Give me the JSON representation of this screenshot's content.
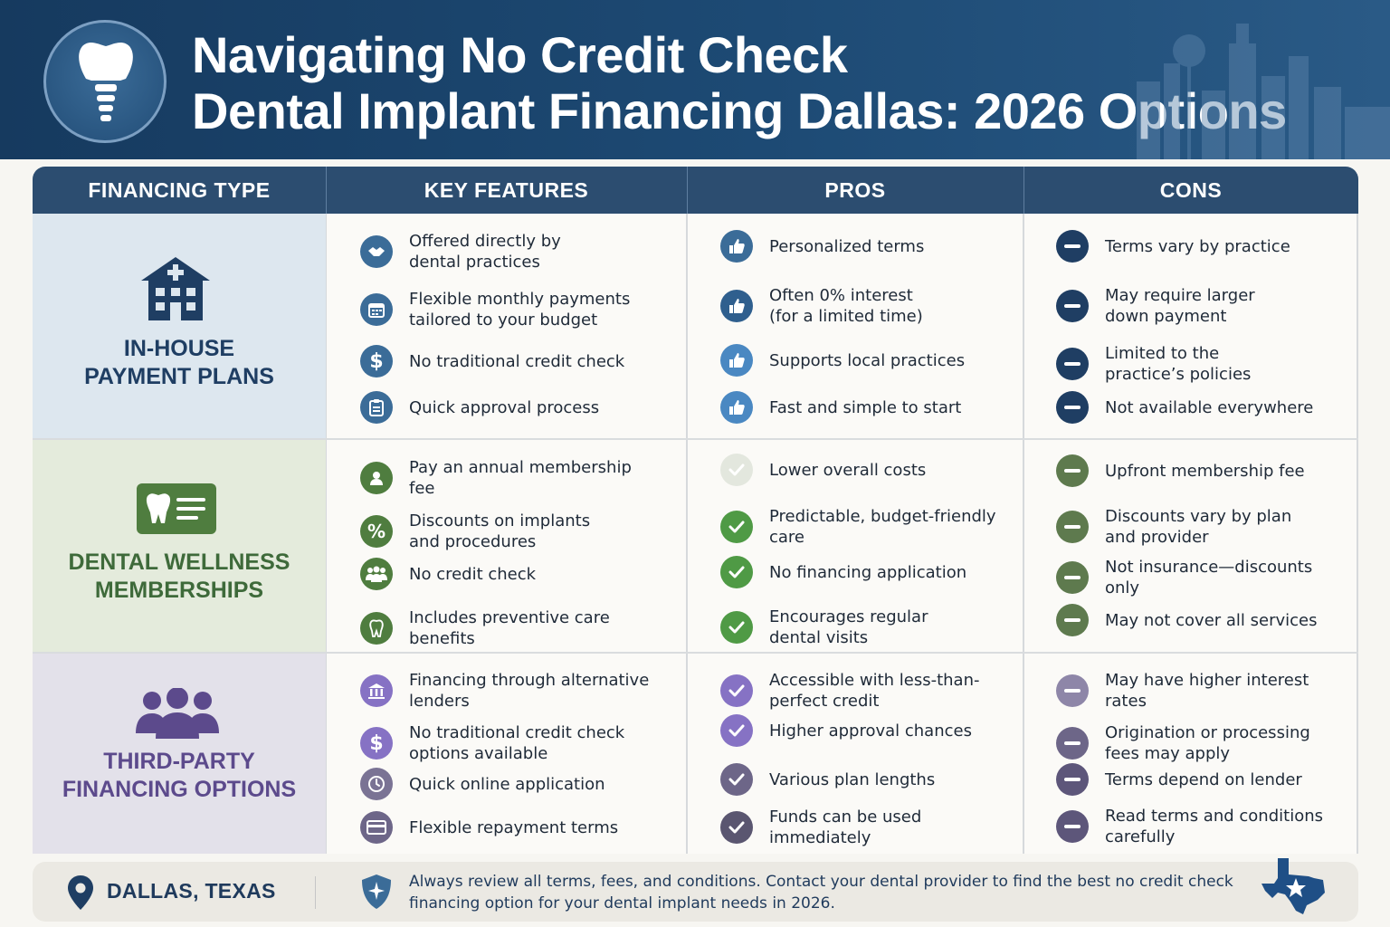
{
  "header": {
    "title_line1": "Navigating No Credit Check",
    "title_line2": "Dental Implant Financing Dallas: 2026 Options",
    "logo_icon": "dental-implant-icon"
  },
  "table": {
    "columns": [
      "FINANCING TYPE",
      "KEY FEATURES",
      "PROS",
      "CONS"
    ],
    "rows": [
      {
        "type_line1": "IN-HOUSE",
        "type_line2": "PAYMENT PLANS",
        "type_icon": "hospital-building-icon",
        "color": "#1f3e63",
        "features": [
          {
            "icon": "handshake-icon",
            "text": "Offered directly by\ndental practices"
          },
          {
            "icon": "calendar-icon",
            "text": "Flexible monthly payments\ntailored to your budget"
          },
          {
            "icon": "dollar-icon",
            "text": "No traditional credit check"
          },
          {
            "icon": "clipboard-icon",
            "text": "Quick approval process"
          }
        ],
        "pros": [
          {
            "icon": "thumbs-up-icon",
            "text": "Personalized terms"
          },
          {
            "icon": "thumbs-up-icon",
            "text": "Often 0% interest\n(for a limited time)"
          },
          {
            "icon": "thumbs-up-icon",
            "text": "Supports local practices"
          },
          {
            "icon": "thumbs-up-icon",
            "text": "Fast and simple to start"
          }
        ],
        "cons": [
          {
            "icon": "minus-icon",
            "text": "Terms vary by practice"
          },
          {
            "icon": "minus-icon",
            "text": "May require larger\ndown payment"
          },
          {
            "icon": "minus-icon",
            "text": "Limited to the\npractice’s policies"
          },
          {
            "icon": "minus-icon",
            "text": "Not available everywhere"
          }
        ]
      },
      {
        "type_line1": "DENTAL WELLNESS",
        "type_line2": "MEMBERSHIPS",
        "type_icon": "membership-card-icon",
        "color": "#3e6a3a",
        "features": [
          {
            "icon": "user-icon",
            "text": "Pay an annual membership\nfee"
          },
          {
            "icon": "percent-icon",
            "text": "Discounts on implants\nand procedures"
          },
          {
            "icon": "group-icon",
            "text": "No credit check"
          },
          {
            "icon": "tooth-icon",
            "text": "Includes preventive care\nbenefits"
          }
        ],
        "pros": [
          {
            "icon": "check-icon",
            "text": "Lower overall costs"
          },
          {
            "icon": "check-icon",
            "text": "Predictable, budget-friendly\ncare"
          },
          {
            "icon": "check-icon",
            "text": "No financing application"
          },
          {
            "icon": "check-icon",
            "text": "Encourages regular\ndental visits"
          }
        ],
        "cons": [
          {
            "icon": "minus-icon",
            "text": "Upfront membership fee"
          },
          {
            "icon": "minus-icon",
            "text": "Discounts vary by plan\nand provider"
          },
          {
            "icon": "minus-icon",
            "text": "Not insurance—discounts\nonly"
          },
          {
            "icon": "minus-icon",
            "text": "May not cover all services"
          }
        ]
      },
      {
        "type_line1": "THIRD-PARTY",
        "type_line2": "FINANCING OPTIONS",
        "type_icon": "people-group-icon",
        "color": "#5c4a8c",
        "features": [
          {
            "icon": "bank-icon",
            "text": "Financing through alternative\nlenders"
          },
          {
            "icon": "dollar-icon",
            "text": "No traditional credit check\noptions available"
          },
          {
            "icon": "clock-icon",
            "text": "Quick online application"
          },
          {
            "icon": "credit-card-icon",
            "text": "Flexible repayment terms"
          }
        ],
        "pros": [
          {
            "icon": "check-icon",
            "text": "Accessible with less-than-\nperfect credit"
          },
          {
            "icon": "check-icon",
            "text": "Higher approval chances"
          },
          {
            "icon": "check-icon",
            "text": "Various plan lengths"
          },
          {
            "icon": "check-icon",
            "text": "Funds can be used\nimmediately"
          }
        ],
        "cons": [
          {
            "icon": "minus-icon",
            "text": "May have higher interest\nrates"
          },
          {
            "icon": "minus-icon",
            "text": "Origination or processing\nfees may apply"
          },
          {
            "icon": "minus-icon",
            "text": "Terms depend on lender"
          },
          {
            "icon": "minus-icon",
            "text": "Read terms and conditions\ncarefully"
          }
        ]
      }
    ]
  },
  "footer": {
    "location": "DALLAS, TEXAS",
    "note": "Always review all terms, fees, and conditions. Contact your dental provider to find the best no credit check financing option for your dental implant needs in 2026.",
    "icons": [
      "location-pin-icon",
      "shield-icon",
      "texas-star-icon"
    ]
  }
}
